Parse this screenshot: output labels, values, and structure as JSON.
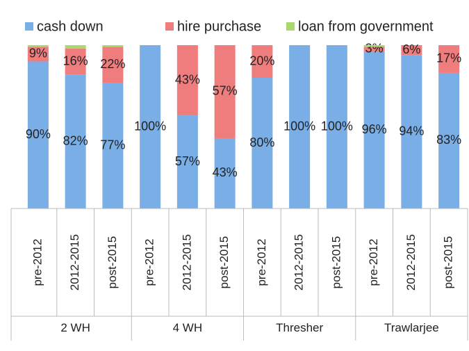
{
  "chart_data": {
    "type": "stacked_bar",
    "categories": [
      "pre-2012",
      "2012-2015",
      "post-2015",
      "pre-2012",
      "2012-2015",
      "post-2015",
      "pre-2012",
      "2012-2015",
      "post-2015",
      "pre-2012",
      "2012-2015",
      "post-2015"
    ],
    "groups": [
      "2 WH",
      "4 WH",
      "Thresher",
      "Trawlarjee"
    ],
    "series": [
      {
        "name": "cash down",
        "color": "#7aaee6",
        "values": [
          90,
          82,
          77,
          100,
          57,
          43,
          80,
          100,
          100,
          96,
          94,
          83
        ],
        "value_labels": [
          "90%",
          "82%",
          "77%",
          "100%",
          "57%",
          "43%",
          "80%",
          "100%",
          "100%",
          "96%",
          "94%",
          "83%"
        ]
      },
      {
        "name": "hire purchase",
        "color": "#ef7d7d",
        "values": [
          9,
          16,
          22,
          0,
          43,
          57,
          20,
          0,
          0,
          3,
          6,
          17
        ],
        "value_labels": [
          "9%",
          "16%",
          "22%",
          null,
          "43%",
          "57%",
          "20%",
          null,
          null,
          "3%",
          "6%",
          "17%"
        ]
      },
      {
        "name": "loan from government",
        "color": "#a9d86e",
        "values": [
          1,
          2,
          1,
          0,
          0,
          0,
          0,
          0,
          0,
          1,
          0,
          0
        ]
      }
    ],
    "legend": "top"
  }
}
